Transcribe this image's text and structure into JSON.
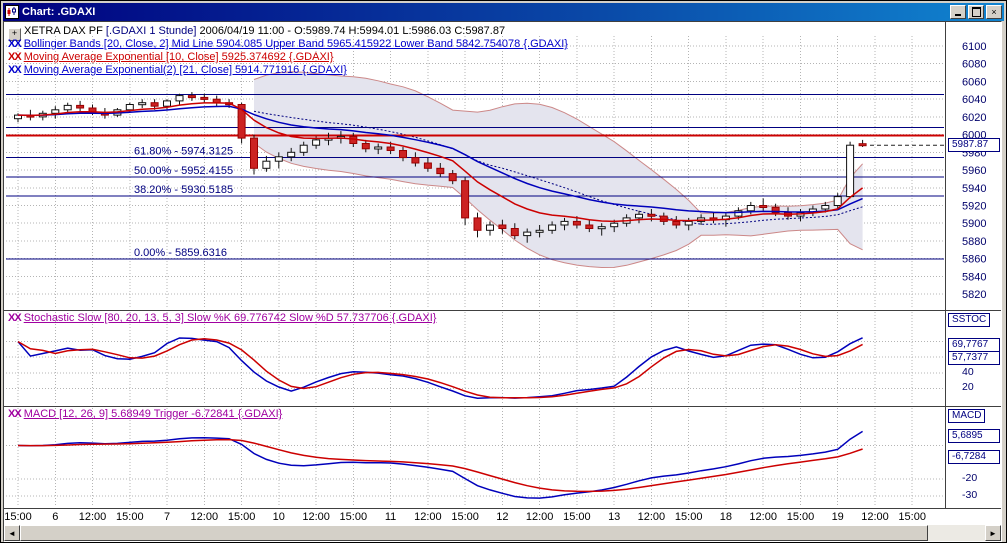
{
  "window": {
    "title": "Chart: .GDAXI"
  },
  "icons": {
    "xx": "XX",
    "close": "×",
    "crosshair": "+",
    "scroll_left": "◄",
    "scroll_right": "►"
  },
  "header": {
    "instrument_name": "XETRA DAX PF",
    "symbol_part": "[.GDAXI  1 Stunde]",
    "ohlc_part": "2006/04/19 11:00 - O:5989.74 H:5994.01 L:5986.03 C:5987.87",
    "bollinger_line": "Bollinger Bands [20, Close, 2] Mid Line 5904.085 Upper Band 5965.415922 Lower Band 5842.754078 {.GDAXI}",
    "ema10_line": "Moving Average Exponential [10, Close] 5925.374692 {.GDAXI}",
    "ema21_line": "Moving Average Exponential(2) [21, Close] 5914.771916 {.GDAXI}"
  },
  "panels": {
    "stochastic_header": "Stochastic Slow [80, 20, 13, 5, 3] Slow %K 69.776742 Slow %D 57.737706 {.GDAXI}",
    "macd_header": "MACD [12, 26, 9] 5.68949 Trigger -6.72841 {.GDAXI}",
    "sstoc_label": "SSTOC",
    "macd_label": "MACD",
    "price_label": "5987.87",
    "stoch_k_value": "69,7767",
    "stoch_d_value": "57,7377",
    "stoch_axis_40": "40",
    "stoch_axis_20": "20",
    "macd_value": "5,6895",
    "macd_trigger_value": "-6,7284",
    "macd_axis_m20": "-20",
    "macd_axis_m30": "-30"
  },
  "chart_data": {
    "type": "candlestick",
    "title": "XETRA DAX PF [.GDAXI 1 Stunde]",
    "ohlc_current": {
      "open": 5989.74,
      "high": 5994.01,
      "low": 5986.03,
      "close": 5987.87
    },
    "price_axis": {
      "min": 5820,
      "max": 6100,
      "step": 20
    },
    "slots_total": 75,
    "candles": [
      [
        6018,
        6024,
        6014,
        6022
      ],
      [
        6022,
        6028,
        6016,
        6020
      ],
      [
        6020,
        6027,
        6016,
        6024
      ],
      [
        6024,
        6032,
        6018,
        6028
      ],
      [
        6028,
        6036,
        6024,
        6033
      ],
      [
        6033,
        6038,
        6026,
        6030
      ],
      [
        6030,
        6034,
        6022,
        6025
      ],
      [
        6025,
        6030,
        6018,
        6022
      ],
      [
        6022,
        6030,
        6020,
        6028
      ],
      [
        6028,
        6036,
        6026,
        6034
      ],
      [
        6034,
        6040,
        6030,
        6036
      ],
      [
        6036,
        6040,
        6028,
        6032
      ],
      [
        6032,
        6040,
        6028,
        6038
      ],
      [
        6038,
        6046,
        6034,
        6044
      ],
      [
        6044,
        6048,
        6038,
        6042
      ],
      [
        6042,
        6046,
        6036,
        6040
      ],
      [
        6040,
        6044,
        6032,
        6036
      ],
      [
        6036,
        6040,
        6030,
        6034
      ],
      [
        6034,
        6036,
        5990,
        5996
      ],
      [
        5996,
        6000,
        5955,
        5962
      ],
      [
        5962,
        5976,
        5958,
        5970
      ],
      [
        5970,
        5980,
        5962,
        5975
      ],
      [
        5975,
        5985,
        5970,
        5980
      ],
      [
        5980,
        5992,
        5976,
        5988
      ],
      [
        5988,
        5998,
        5984,
        5994
      ],
      [
        5994,
        6002,
        5988,
        5996
      ],
      [
        5996,
        6004,
        5990,
        5998
      ],
      [
        5998,
        6002,
        5986,
        5990
      ],
      [
        5990,
        5994,
        5980,
        5984
      ],
      [
        5984,
        5990,
        5978,
        5986
      ],
      [
        5986,
        5992,
        5978,
        5982
      ],
      [
        5982,
        5986,
        5970,
        5974
      ],
      [
        5974,
        5980,
        5964,
        5968
      ],
      [
        5968,
        5974,
        5958,
        5962
      ],
      [
        5962,
        5968,
        5952,
        5956
      ],
      [
        5956,
        5960,
        5944,
        5948
      ],
      [
        5948,
        5952,
        5898,
        5906
      ],
      [
        5906,
        5912,
        5884,
        5892
      ],
      [
        5892,
        5902,
        5886,
        5898
      ],
      [
        5898,
        5904,
        5888,
        5894
      ],
      [
        5894,
        5900,
        5882,
        5886
      ],
      [
        5886,
        5894,
        5878,
        5890
      ],
      [
        5890,
        5898,
        5884,
        5892
      ],
      [
        5892,
        5902,
        5888,
        5898
      ],
      [
        5898,
        5906,
        5892,
        5902
      ],
      [
        5902,
        5908,
        5894,
        5898
      ],
      [
        5898,
        5904,
        5890,
        5894
      ],
      [
        5894,
        5900,
        5886,
        5896
      ],
      [
        5896,
        5904,
        5890,
        5900
      ],
      [
        5900,
        5910,
        5896,
        5906
      ],
      [
        5906,
        5914,
        5900,
        5910
      ],
      [
        5910,
        5916,
        5902,
        5908
      ],
      [
        5908,
        5912,
        5898,
        5902
      ],
      [
        5902,
        5908,
        5894,
        5898
      ],
      [
        5898,
        5906,
        5892,
        5902
      ],
      [
        5902,
        5910,
        5898,
        5906
      ],
      [
        5906,
        5912,
        5900,
        5904
      ],
      [
        5904,
        5912,
        5896,
        5908
      ],
      [
        5908,
        5918,
        5904,
        5914
      ],
      [
        5914,
        5924,
        5910,
        5920
      ],
      [
        5920,
        5928,
        5914,
        5918
      ],
      [
        5918,
        5922,
        5908,
        5912
      ],
      [
        5912,
        5918,
        5904,
        5908
      ],
      [
        5908,
        5916,
        5902,
        5912
      ],
      [
        5912,
        5920,
        5908,
        5916
      ],
      [
        5916,
        5924,
        5912,
        5920
      ],
      [
        5920,
        5934,
        5916,
        5930
      ],
      [
        5930,
        5992,
        5928,
        5988
      ],
      [
        5989.74,
        5994.01,
        5986.03,
        5987.87
      ]
    ],
    "time_ticks": [
      {
        "slot": 0,
        "label": "15:00"
      },
      {
        "slot": 3,
        "label": "6"
      },
      {
        "slot": 6,
        "label": "12:00"
      },
      {
        "slot": 9,
        "label": "15:00"
      },
      {
        "slot": 12,
        "label": "7"
      },
      {
        "slot": 15,
        "label": "12:00"
      },
      {
        "slot": 18,
        "label": "15:00"
      },
      {
        "slot": 21,
        "label": "10"
      },
      {
        "slot": 24,
        "label": "12:00"
      },
      {
        "slot": 27,
        "label": "15:00"
      },
      {
        "slot": 30,
        "label": "11"
      },
      {
        "slot": 33,
        "label": "12:00"
      },
      {
        "slot": 36,
        "label": "15:00"
      },
      {
        "slot": 39,
        "label": "12"
      },
      {
        "slot": 42,
        "label": "12:00"
      },
      {
        "slot": 45,
        "label": "15:00"
      },
      {
        "slot": 48,
        "label": "13"
      },
      {
        "slot": 51,
        "label": "12:00"
      },
      {
        "slot": 54,
        "label": "15:00"
      },
      {
        "slot": 57,
        "label": "18"
      },
      {
        "slot": 60,
        "label": "12:00"
      },
      {
        "slot": 63,
        "label": "15:00"
      },
      {
        "slot": 66,
        "label": "19"
      },
      {
        "slot": 69,
        "label": "12:00"
      },
      {
        "slot": 72,
        "label": "15:00"
      }
    ],
    "fib_levels": [
      {
        "label": "61.80% - 5974.3125",
        "value": 5974.3125
      },
      {
        "label": "50.00% - 5952.4155",
        "value": 5952.4155
      },
      {
        "label": "38.20% - 5930.5185",
        "value": 5930.5185
      },
      {
        "label": "0.00% - 5859.6316",
        "value": 5859.6316
      }
    ],
    "extra_lines": [
      {
        "value": 6045.2,
        "color": "#000080",
        "width": 1
      },
      {
        "value": 6008.0,
        "color": "#000080",
        "width": 1
      },
      {
        "value": 5999.0,
        "color": "#cc0000",
        "width": 2
      }
    ],
    "overlays": {
      "bollinger": {
        "period": 20,
        "deviations": 2,
        "mid": 5904.085,
        "upper": 5965.415922,
        "lower": 5842.754078
      },
      "ema_fast": {
        "period": 10,
        "value": 5925.374692
      },
      "ema_slow": {
        "period": 21,
        "value": 5914.771916
      }
    },
    "stochastic": {
      "params": [
        80,
        20,
        13,
        5,
        3
      ],
      "slow_k": 69.776742,
      "slow_d": 57.737706,
      "scale": [
        0,
        100
      ],
      "axis_ticks": [
        40,
        20
      ]
    },
    "macd": {
      "params": [
        12,
        26,
        9
      ],
      "macd": 5.68949,
      "trigger": -6.72841,
      "axis_ticks": [
        -20,
        -30
      ]
    },
    "colors": {
      "up_candle": "#ffffff",
      "down_candle": "#cc2222",
      "wick": "#111111",
      "ema_fast": "#cc0000",
      "ema_slow": "#0000bb",
      "band_fill": "#e4e4ee",
      "band_edge": "#cc8888",
      "band_mid": "#000080",
      "fib_line": "#000080",
      "grid": "#b4b4b4",
      "separator": "#404040",
      "stoch_k": "#0000bb",
      "stoch_d": "#cc0000",
      "macd_line": "#0000bb",
      "macd_trigger": "#cc0000"
    }
  }
}
